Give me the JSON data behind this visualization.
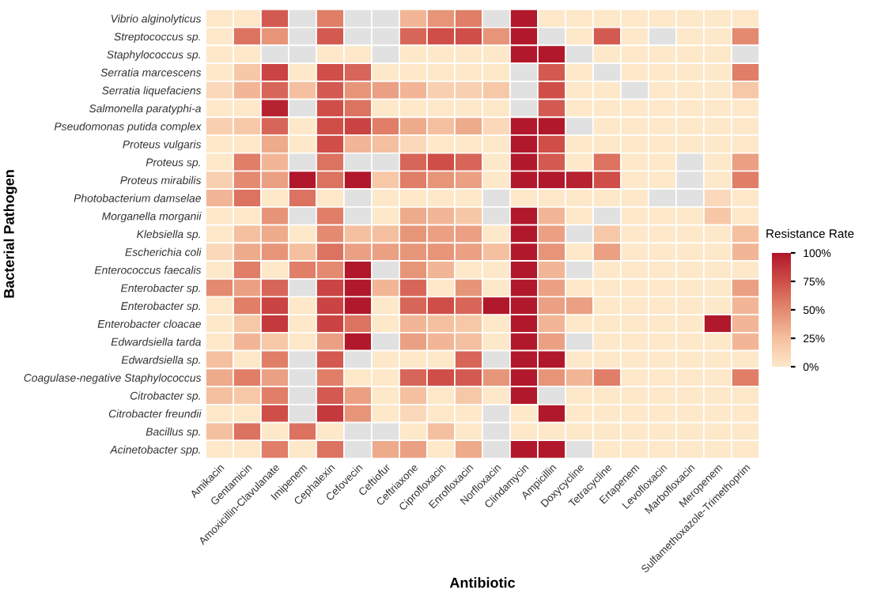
{
  "chart_data": {
    "type": "heatmap",
    "xlabel": "Antibiotic",
    "ylabel": "Bacterial Pathogen",
    "clabel": "Resistance Rate",
    "categories": [
      "Amikacin",
      "Gentamicin",
      "Amoxicillin-Clavulanate",
      "Imipenem",
      "Cephalexin",
      "Cefovecin",
      "Ceftiofur",
      "Ceftriaxone",
      "Ciprofloxacin",
      "Enrofloxacin",
      "Norfloxacin",
      "Clindamycin",
      "Ampicillin",
      "Doxycycline",
      "Tetracycline",
      "Ertapenem",
      "Levofloxacin",
      "Marbofloxacin",
      "Meropenem",
      "Sulfamethoxazole-Trimethoprim"
    ],
    "y_categories": [
      "Vibrio alginolyticus",
      "Streptococcus sp.",
      "Staphylococcus sp.",
      "Serratia marcescens",
      "Serratia liquefaciens",
      "Salmonella paratyphi-a",
      "Pseudomonas putida complex",
      "Proteus vulgaris",
      "Proteus sp.",
      "Proteus mirabilis",
      "Photobacterium damselae",
      "Morganella morganii",
      "Klebsiella sp.",
      "Escherichia coli",
      "Enterococcus faecalis",
      "Enterobacter sp.",
      "Enterobacter sp.",
      "Enterobacter cloacae",
      "Edwardsiella tarda",
      "Edwardsiella sp.",
      "Coagulase-negative Staphylococcus",
      "Citrobacter sp.",
      "Citrobacter freundii",
      "Bacillus sp.",
      "Acinetobacter spp."
    ],
    "cells": [
      [
        0,
        0,
        70,
        null,
        55,
        null,
        null,
        30,
        45,
        55,
        null,
        100,
        0,
        0,
        0,
        0,
        0,
        0,
        0,
        0
      ],
      [
        0,
        60,
        45,
        null,
        70,
        null,
        null,
        65,
        75,
        75,
        45,
        100,
        null,
        0,
        70,
        0,
        null,
        0,
        0,
        50
      ],
      [
        0,
        0,
        null,
        null,
        0,
        0,
        null,
        0,
        0,
        0,
        0,
        100,
        100,
        null,
        0,
        0,
        0,
        0,
        0,
        null
      ],
      [
        0,
        20,
        80,
        0,
        75,
        65,
        0,
        0,
        0,
        0,
        0,
        null,
        70,
        0,
        null,
        0,
        0,
        0,
        0,
        55
      ],
      [
        10,
        30,
        65,
        25,
        70,
        45,
        40,
        30,
        15,
        15,
        20,
        null,
        75,
        0,
        0,
        null,
        0,
        0,
        0,
        20
      ],
      [
        0,
        0,
        95,
        null,
        75,
        60,
        0,
        0,
        0,
        0,
        0,
        null,
        70,
        0,
        0,
        0,
        0,
        0,
        0,
        0
      ],
      [
        15,
        20,
        65,
        0,
        75,
        80,
        55,
        35,
        25,
        35,
        10,
        100,
        100,
        null,
        0,
        0,
        0,
        0,
        0,
        0
      ],
      [
        0,
        0,
        35,
        0,
        75,
        30,
        25,
        10,
        0,
        0,
        0,
        100,
        75,
        0,
        0,
        0,
        0,
        0,
        0,
        0
      ],
      [
        0,
        55,
        30,
        null,
        60,
        null,
        null,
        65,
        75,
        65,
        0,
        100,
        70,
        0,
        60,
        0,
        0,
        null,
        0,
        40
      ],
      [
        15,
        50,
        40,
        100,
        60,
        100,
        20,
        55,
        45,
        40,
        0,
        100,
        100,
        95,
        75,
        0,
        0,
        null,
        0,
        55
      ],
      [
        30,
        60,
        0,
        60,
        0,
        null,
        0,
        0,
        0,
        0,
        null,
        0,
        0,
        0,
        0,
        0,
        null,
        null,
        10,
        0
      ],
      [
        0,
        0,
        45,
        null,
        55,
        null,
        0,
        35,
        30,
        20,
        null,
        100,
        30,
        0,
        null,
        0,
        0,
        0,
        20,
        0
      ],
      [
        0,
        25,
        35,
        0,
        50,
        25,
        25,
        45,
        40,
        40,
        0,
        100,
        40,
        null,
        20,
        0,
        0,
        0,
        0,
        25
      ],
      [
        10,
        35,
        45,
        25,
        60,
        40,
        40,
        45,
        45,
        40,
        25,
        100,
        45,
        0,
        40,
        0,
        0,
        0,
        0,
        30
      ],
      [
        0,
        55,
        0,
        55,
        50,
        100,
        null,
        45,
        30,
        0,
        0,
        100,
        30,
        null,
        0,
        0,
        0,
        0,
        0,
        0
      ],
      [
        50,
        40,
        65,
        null,
        80,
        100,
        30,
        65,
        0,
        45,
        0,
        100,
        40,
        0,
        0,
        0,
        0,
        0,
        0,
        40
      ],
      [
        0,
        55,
        80,
        0,
        80,
        100,
        0,
        65,
        75,
        65,
        100,
        100,
        40,
        40,
        0,
        0,
        0,
        0,
        0,
        30
      ],
      [
        0,
        20,
        85,
        0,
        80,
        60,
        0,
        30,
        25,
        20,
        0,
        100,
        30,
        0,
        0,
        0,
        0,
        0,
        100,
        30
      ],
      [
        0,
        30,
        20,
        0,
        40,
        100,
        null,
        40,
        30,
        25,
        0,
        100,
        40,
        null,
        0,
        0,
        0,
        0,
        0,
        30
      ],
      [
        25,
        0,
        55,
        null,
        70,
        null,
        0,
        0,
        0,
        65,
        null,
        100,
        100,
        0,
        0,
        0,
        0,
        0,
        0,
        0
      ],
      [
        35,
        55,
        40,
        null,
        55,
        0,
        0,
        65,
        75,
        70,
        45,
        100,
        45,
        30,
        55,
        0,
        0,
        0,
        0,
        55
      ],
      [
        25,
        20,
        55,
        null,
        70,
        40,
        0,
        25,
        0,
        20,
        0,
        100,
        null,
        0,
        0,
        0,
        0,
        0,
        0,
        0
      ],
      [
        0,
        0,
        75,
        null,
        85,
        45,
        0,
        10,
        0,
        0,
        null,
        0,
        100,
        0,
        0,
        0,
        0,
        0,
        0,
        0
      ],
      [
        25,
        60,
        0,
        60,
        0,
        null,
        null,
        0,
        25,
        0,
        null,
        0,
        0,
        0,
        0,
        0,
        0,
        0,
        0,
        0
      ],
      [
        0,
        0,
        55,
        0,
        60,
        null,
        35,
        40,
        0,
        35,
        null,
        100,
        100,
        null,
        0,
        0,
        0,
        0,
        0,
        0
      ]
    ],
    "clim": [
      0,
      100
    ],
    "cticks": [
      {
        "value": 0,
        "label": "0%"
      },
      {
        "value": 25,
        "label": "25%"
      },
      {
        "value": 50,
        "label": "50%"
      },
      {
        "value": 75,
        "label": "75%"
      },
      {
        "value": 100,
        "label": "100%"
      }
    ]
  }
}
